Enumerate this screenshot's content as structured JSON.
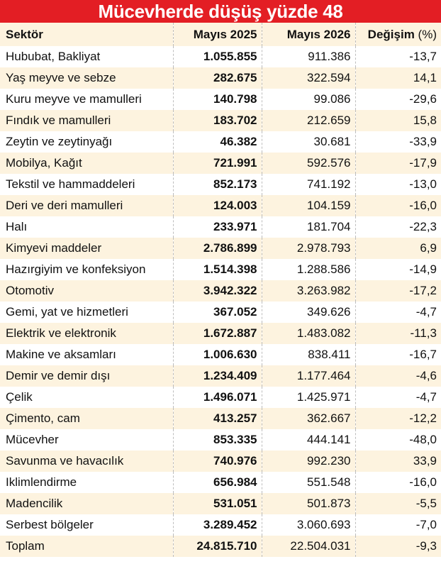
{
  "title": "Mücevherde düşüş yüzde 48",
  "columns": {
    "sector": "Sektör",
    "may2025": "Mayıs 2025",
    "may2026": "Mayıs 2026",
    "change": "Değişim",
    "change_unit": "(%)"
  },
  "rows": [
    {
      "sector": "Hububat, Bakliyat",
      "may2025": "1.055.855",
      "may2026": "911.386",
      "change": "-13,7"
    },
    {
      "sector": "Yaş meyve ve sebze",
      "may2025": "282.675",
      "may2026": "322.594",
      "change": "14,1"
    },
    {
      "sector": "Kuru meyve ve mamulleri",
      "may2025": "140.798",
      "may2026": "99.086",
      "change": "-29,6"
    },
    {
      "sector": "Fındık ve mamulleri",
      "may2025": "183.702",
      "may2026": "212.659",
      "change": "15,8"
    },
    {
      "sector": "Zeytin ve zeytinyağı",
      "may2025": "46.382",
      "may2026": "30.681",
      "change": "-33,9"
    },
    {
      "sector": "Mobilya, Kağıt",
      "may2025": "721.991",
      "may2026": "592.576",
      "change": "-17,9"
    },
    {
      "sector": "Tekstil ve hammaddeleri",
      "may2025": "852.173",
      "may2026": "741.192",
      "change": "-13,0"
    },
    {
      "sector": "Deri ve deri mamulleri",
      "may2025": "124.003",
      "may2026": "104.159",
      "change": "-16,0"
    },
    {
      "sector": "Halı",
      "may2025": "233.971",
      "may2026": "181.704",
      "change": "-22,3"
    },
    {
      "sector": "Kimyevi maddeler",
      "may2025": "2.786.899",
      "may2026": "2.978.793",
      "change": "6,9"
    },
    {
      "sector": "Hazırgiyim ve konfeksiyon",
      "may2025": "1.514.398",
      "may2026": "1.288.586",
      "change": "-14,9"
    },
    {
      "sector": "Otomotiv",
      "may2025": "3.942.322",
      "may2026": "3.263.982",
      "change": "-17,2"
    },
    {
      "sector": "Gemi, yat ve hizmetleri",
      "may2025": "367.052",
      "may2026": "349.626",
      "change": "-4,7"
    },
    {
      "sector": "Elektrik ve elektronik",
      "may2025": "1.672.887",
      "may2026": "1.483.082",
      "change": "-11,3"
    },
    {
      "sector": "Makine ve aksamları",
      "may2025": "1.006.630",
      "may2026": "838.411",
      "change": "-16,7"
    },
    {
      "sector": "Demir ve demir dışı",
      "may2025": "1.234.409",
      "may2026": "1.177.464",
      "change": "-4,6"
    },
    {
      "sector": "Çelik",
      "may2025": "1.496.071",
      "may2026": "1.425.971",
      "change": "-4,7"
    },
    {
      "sector": "Çimento, cam",
      "may2025": "413.257",
      "may2026": "362.667",
      "change": "-12,2"
    },
    {
      "sector": "Mücevher",
      "may2025": "853.335",
      "may2026": "444.141",
      "change": "-48,0"
    },
    {
      "sector": "Savunma ve havacılık",
      "may2025": "740.976",
      "may2026": "992.230",
      "change": "33,9"
    },
    {
      "sector": "Iklimlendirme",
      "may2025": "656.984",
      "may2026": "551.548",
      "change": "-16,0"
    },
    {
      "sector": "Madencilik",
      "may2025": "531.051",
      "may2026": "501.873",
      "change": "-5,5"
    },
    {
      "sector": "Serbest bölgeler",
      "may2025": "3.289.452",
      "may2026": "3.060.693",
      "change": "-7,0"
    },
    {
      "sector": "Toplam",
      "may2025": "24.815.710",
      "may2026": "22.504.031",
      "change": "-9,3"
    }
  ],
  "colors": {
    "title_bg": "#e31e24",
    "stripe": "#fdf3df"
  }
}
